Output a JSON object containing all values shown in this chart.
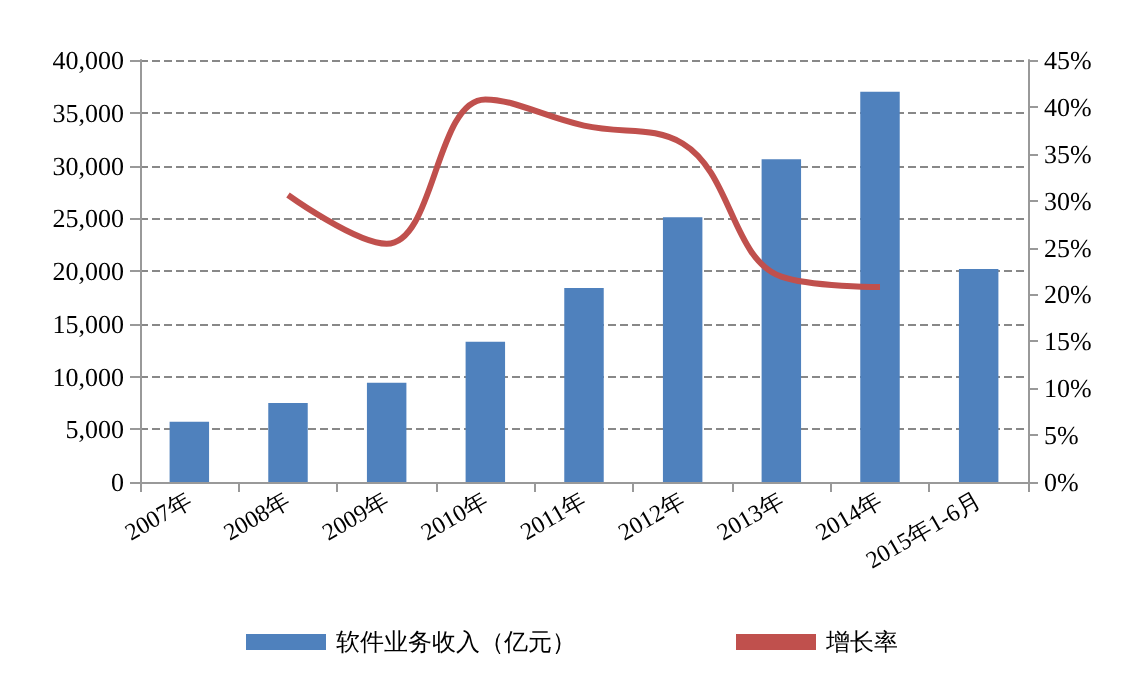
{
  "chart_data": {
    "type": "bar",
    "categories": [
      "2007年",
      "2008年",
      "2009年",
      "2010年",
      "2011年",
      "2012年",
      "2013年",
      "2014年",
      "2015年1-6月"
    ],
    "series": [
      {
        "name": "软件业务收入（亿元）",
        "color": "#4f81bd",
        "values": [
          5700,
          7500,
          9400,
          13300,
          18400,
          25100,
          30600,
          37000,
          20200
        ]
      },
      {
        "name": "增长率",
        "type": "line",
        "axis": "y2",
        "color": "#c0504d",
        "values": [
          null,
          30.6,
          25.4,
          40.8,
          38.0,
          36.1,
          21.9,
          20.8,
          null
        ]
      }
    ],
    "ylim": [
      0,
      40000
    ],
    "yticks": [
      {
        "value": 0,
        "label": "0"
      },
      {
        "value": 5000,
        "label": "5,000"
      },
      {
        "value": 10000,
        "label": "10,000"
      },
      {
        "value": 15000,
        "label": "15,000"
      },
      {
        "value": 20000,
        "label": "20,000"
      },
      {
        "value": 25000,
        "label": "25,000"
      },
      {
        "value": 30000,
        "label": "30,000"
      },
      {
        "value": 35000,
        "label": "35,000"
      },
      {
        "value": 40000,
        "label": "40,000"
      }
    ],
    "y2lim": [
      0,
      45
    ],
    "y2ticks": [
      {
        "value": 0,
        "label": "0%"
      },
      {
        "value": 5,
        "label": "5%"
      },
      {
        "value": 10,
        "label": "10%"
      },
      {
        "value": 15,
        "label": "15%"
      },
      {
        "value": 20,
        "label": "20%"
      },
      {
        "value": 25,
        "label": "25%"
      },
      {
        "value": 30,
        "label": "30%"
      },
      {
        "value": 35,
        "label": "35%"
      },
      {
        "value": 40,
        "label": "40%"
      },
      {
        "value": 45,
        "label": "45%"
      }
    ],
    "grid": "y",
    "legend": "bottom",
    "marker": "none",
    "line_style": "solid"
  }
}
